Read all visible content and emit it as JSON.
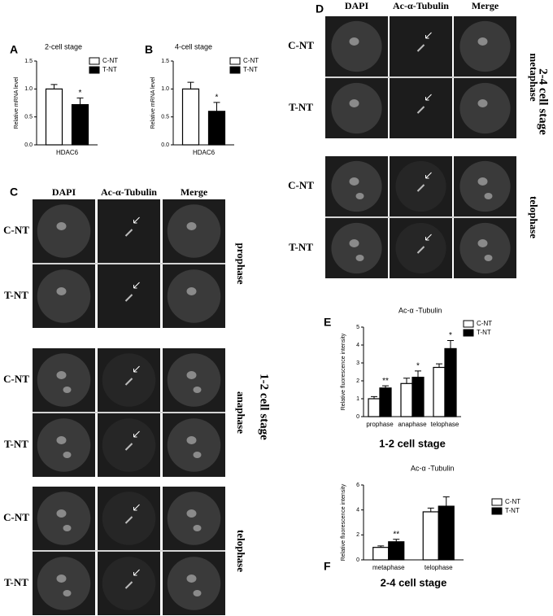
{
  "chart_data": [
    {
      "type": "bar",
      "panel_label": "A",
      "title": "2-cell stage",
      "ylabel": "Relative mRNA level",
      "categories": [
        "HDAC6"
      ],
      "series": [
        {
          "name": "C-NT",
          "color": "#ffffff",
          "values": [
            1.0
          ],
          "errors": [
            0.08
          ]
        },
        {
          "name": "T-NT",
          "color": "#000000",
          "values": [
            0.72
          ],
          "errors": [
            0.12
          ],
          "significance": [
            "*"
          ]
        }
      ],
      "ylim": [
        0,
        1.5
      ],
      "yticks": [
        {
          "value": 0,
          "label": "0.0"
        },
        {
          "value": 0.5,
          "label": "0.5"
        },
        {
          "value": 1,
          "label": "1.0"
        },
        {
          "value": 1.5,
          "label": "1.5"
        }
      ],
      "legend": "upper right"
    },
    {
      "type": "bar",
      "panel_label": "B",
      "title": "4-cell stage",
      "ylabel": "Relative mRNA level",
      "categories": [
        "HDAC6"
      ],
      "series": [
        {
          "name": "C-NT",
          "color": "#ffffff",
          "values": [
            1.0
          ],
          "errors": [
            0.12
          ]
        },
        {
          "name": "T-NT",
          "color": "#000000",
          "values": [
            0.6
          ],
          "errors": [
            0.16
          ],
          "significance": [
            "*"
          ]
        }
      ],
      "ylim": [
        0,
        1.5
      ],
      "yticks": [
        {
          "value": 0,
          "label": "0.0"
        },
        {
          "value": 0.5,
          "label": "0.5"
        },
        {
          "value": 1,
          "label": "1.0"
        },
        {
          "value": 1.5,
          "label": "1.5"
        }
      ],
      "legend": "upper right"
    },
    {
      "type": "bar",
      "panel_label": "E",
      "title": "Ac-α -Tubulin",
      "ylabel": "Relative fluorescence intensity",
      "xlabel": "1-2 cell stage",
      "categories": [
        "prophase",
        "anaphase",
        "telophase"
      ],
      "series": [
        {
          "name": "C-NT",
          "color": "#ffffff",
          "values": [
            1.0,
            1.85,
            2.75
          ],
          "errors": [
            0.12,
            0.3,
            0.2
          ]
        },
        {
          "name": "T-NT",
          "color": "#000000",
          "values": [
            1.6,
            2.2,
            3.8
          ],
          "errors": [
            0.12,
            0.35,
            0.45
          ],
          "significance": [
            "**",
            "*",
            "*"
          ]
        }
      ],
      "ylim": [
        0,
        5
      ],
      "yticks": [
        0,
        1,
        2,
        3,
        4,
        5
      ],
      "legend": "upper right"
    },
    {
      "type": "bar",
      "panel_label": "F",
      "title": "Ac-α -Tubulin",
      "ylabel": "Relative fluorescence intensity",
      "xlabel": "2-4 cell stage",
      "categories": [
        "metaphase",
        "telophase"
      ],
      "series": [
        {
          "name": "C-NT",
          "color": "#ffffff",
          "values": [
            1.0,
            3.85
          ],
          "errors": [
            0.12,
            0.3
          ]
        },
        {
          "name": "T-NT",
          "color": "#000000",
          "values": [
            1.45,
            4.3
          ],
          "errors": [
            0.2,
            0.75
          ],
          "significance": [
            "**",
            null
          ]
        }
      ],
      "ylim": [
        0,
        6
      ],
      "yticks": [
        0,
        2,
        4,
        6
      ],
      "legend": "right"
    }
  ],
  "image_panels": [
    {
      "label": "C",
      "columns": [
        "DAPI",
        "Ac-α-Tubulin",
        "Merge"
      ],
      "stage": "1-2 cell stage",
      "groups": [
        {
          "phase": "prophase",
          "rows": [
            "C-NT",
            "T-NT"
          ]
        },
        {
          "phase": "anaphase",
          "rows": [
            "C-NT",
            "T-NT"
          ]
        },
        {
          "phase": "telophase",
          "rows": [
            "C-NT",
            "T-NT"
          ]
        }
      ]
    },
    {
      "label": "D",
      "columns": [
        "DAPI",
        "Ac-α-Tubulin",
        "Merge"
      ],
      "stage": "2-4 cell stage",
      "groups": [
        {
          "phase": "metaphase",
          "rows": [
            "C-NT",
            "T-NT"
          ]
        },
        {
          "phase": "telophase",
          "rows": [
            "C-NT",
            "T-NT"
          ]
        }
      ]
    }
  ]
}
